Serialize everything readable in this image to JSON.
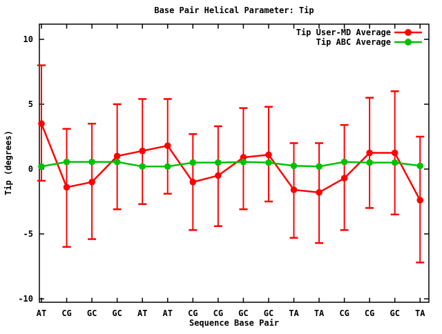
{
  "title": "Base Pair Helical Parameter: Tip",
  "chart_data": {
    "type": "line",
    "subtype": "category linespoints; series 1 with y-error bars",
    "title": "Base Pair Helical Parameter: Tip",
    "xlabel": "Sequence Base Pair",
    "ylabel": "Tip (degrees)",
    "categories": [
      "AT",
      "CG",
      "GC",
      "GC",
      "AT",
      "AT",
      "CG",
      "CG",
      "GC",
      "GC",
      "TA",
      "TA",
      "CG",
      "CG",
      "GC",
      "TA"
    ],
    "yticks": [
      10,
      5,
      0,
      -5,
      -10
    ],
    "ylim": [
      -10.5,
      11.2
    ],
    "grid": false,
    "legend_position": "top-right-inside",
    "axis_color": "#000000",
    "background_color": "#ffffff",
    "series": [
      {
        "name": "Tip User-MD Average",
        "color": "#ff0000",
        "style": "linespoints-with-yerrorbars",
        "values": [
          3.5,
          -1.4,
          -1.0,
          1.0,
          1.4,
          1.8,
          -1.0,
          -0.5,
          0.9,
          1.1,
          -1.6,
          -1.8,
          -0.7,
          1.25,
          1.25,
          -2.4
        ],
        "err_high": [
          8.0,
          3.1,
          3.5,
          5.0,
          5.4,
          5.4,
          2.7,
          3.3,
          4.7,
          4.8,
          2.0,
          2.0,
          3.4,
          5.5,
          6.0,
          2.5
        ],
        "err_low": [
          -0.9,
          -6.0,
          -5.4,
          -3.1,
          -2.7,
          -1.9,
          -4.7,
          -4.4,
          -3.1,
          -2.5,
          -5.3,
          -5.7,
          -4.7,
          -3.0,
          -3.5,
          -7.2
        ]
      },
      {
        "name": "Tip ABC Average",
        "color": "#00c000",
        "style": "linespoints",
        "values": [
          0.2,
          0.55,
          0.55,
          0.55,
          0.2,
          0.2,
          0.5,
          0.5,
          0.55,
          0.5,
          0.25,
          0.2,
          0.55,
          0.5,
          0.5,
          0.25
        ]
      }
    ]
  }
}
